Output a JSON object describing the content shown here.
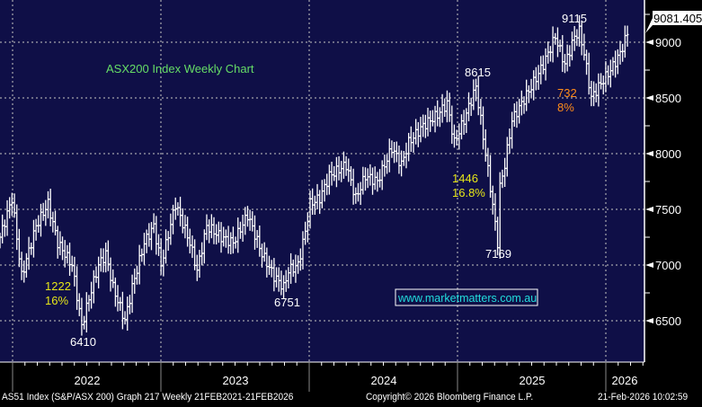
{
  "chart_data": {
    "type": "ohlc",
    "title": "ASX200 Index Weekly Chart",
    "ylim": [
      6000,
      9300
    ],
    "y_ticks": [
      6500,
      7000,
      7500,
      8000,
      8500,
      9000
    ],
    "x_ticks": [
      "2022",
      "2023",
      "2024",
      "2025",
      "2026"
    ],
    "last_value_label": "9081.405",
    "grid": true,
    "series_waypoints_week_close": [
      [
        0,
        7250
      ],
      [
        5,
        7600
      ],
      [
        9,
        6900
      ],
      [
        15,
        7350
      ],
      [
        20,
        7550
      ],
      [
        24,
        7200
      ],
      [
        30,
        7000
      ],
      [
        34,
        6450
      ],
      [
        37,
        6700
      ],
      [
        41,
        7000
      ],
      [
        44,
        7100
      ],
      [
        47,
        6800
      ],
      [
        52,
        6500
      ],
      [
        55,
        6800
      ],
      [
        60,
        7200
      ],
      [
        64,
        7350
      ],
      [
        67,
        7000
      ],
      [
        73,
        7550
      ],
      [
        79,
        7200
      ],
      [
        82,
        6950
      ],
      [
        86,
        7350
      ],
      [
        92,
        7250
      ],
      [
        97,
        7200
      ],
      [
        103,
        7450
      ],
      [
        109,
        7100
      ],
      [
        114,
        6900
      ],
      [
        118,
        6800
      ],
      [
        120,
        6950
      ],
      [
        124,
        7000
      ],
      [
        127,
        7300
      ],
      [
        129,
        7550
      ],
      [
        133,
        7600
      ],
      [
        137,
        7800
      ],
      [
        144,
        7900
      ],
      [
        148,
        7600
      ],
      [
        152,
        7800
      ],
      [
        157,
        7750
      ],
      [
        163,
        8050
      ],
      [
        167,
        7900
      ],
      [
        170,
        8100
      ],
      [
        176,
        8250
      ],
      [
        182,
        8350
      ],
      [
        186,
        8450
      ],
      [
        189,
        8100
      ],
      [
        193,
        8300
      ],
      [
        198,
        8600
      ],
      [
        200,
        8300
      ],
      [
        204,
        7700
      ],
      [
        207,
        7200
      ],
      [
        208,
        7700
      ],
      [
        210,
        7900
      ],
      [
        213,
        8300
      ],
      [
        221,
        8600
      ],
      [
        226,
        8800
      ],
      [
        231,
        9050
      ],
      [
        235,
        8800
      ],
      [
        239,
        9050
      ],
      [
        241,
        9100
      ],
      [
        243,
        8900
      ],
      [
        246,
        8500
      ],
      [
        249,
        8600
      ],
      [
        254,
        8750
      ],
      [
        258,
        8900
      ],
      [
        261,
        9080
      ]
    ],
    "annotations": [
      {
        "text": "9115",
        "color": "#ffffff"
      },
      {
        "text": "8615",
        "color": "#ffffff"
      },
      {
        "text": "732",
        "color": "#ff8c1a"
      },
      {
        "text": "8%",
        "color": "#ff8c1a"
      },
      {
        "text": "1446",
        "color": "#e6e619"
      },
      {
        "text": "16.8%",
        "color": "#e6e619"
      },
      {
        "text": "7169",
        "color": "#ffffff"
      },
      {
        "text": "1222",
        "color": "#e6e619"
      },
      {
        "text": "16%",
        "color": "#e6e619"
      },
      {
        "text": "6410",
        "color": "#ffffff"
      },
      {
        "text": "6751",
        "color": "#ffffff"
      }
    ],
    "watermark": "www.marketmatters.com.au"
  },
  "footer": {
    "left": "AS51 Index (S&P/ASX 200) Graph 217 Weekly 21FEB2021-21FEB2026",
    "center": "Copyright© 2026 Bloomberg Finance L.P.",
    "right": "21-Feb-2026 10:02:59"
  },
  "colors": {
    "bg": "#0f0f47",
    "bars": "#ffffff",
    "grid": "#8a8a9a",
    "title": "#66dd66",
    "watermark": "#22dddd"
  }
}
